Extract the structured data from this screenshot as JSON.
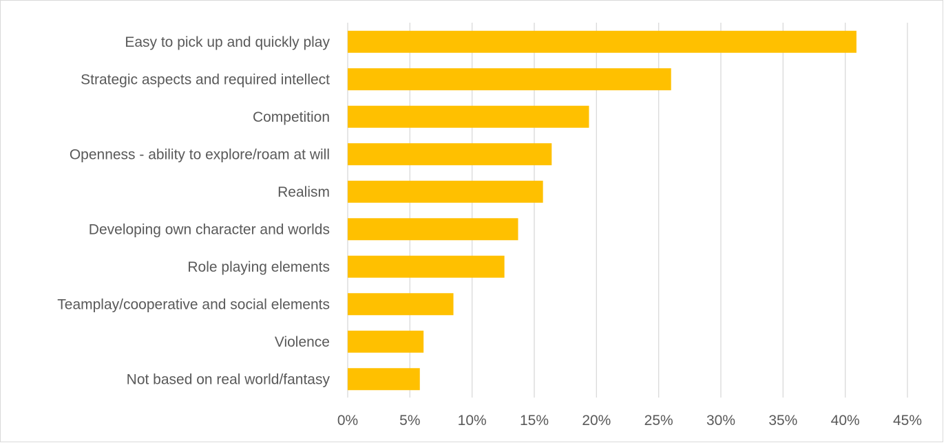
{
  "chart_data": {
    "type": "bar",
    "orientation": "horizontal",
    "categories": [
      "Easy to pick up and quickly play",
      "Strategic aspects and required intellect",
      "Competition",
      "Openness - ability to explore/roam at will",
      "Realism",
      "Developing own character and worlds",
      "Role playing elements",
      "Teamplay/cooperative and social elements",
      "Violence",
      "Not based on real world/fantasy"
    ],
    "values": [
      40.9,
      26.0,
      19.4,
      16.4,
      15.7,
      13.7,
      12.6,
      8.5,
      6.1,
      5.8
    ],
    "xlim": [
      0,
      45
    ],
    "xticks": [
      0,
      5,
      10,
      15,
      20,
      25,
      30,
      35,
      40,
      45
    ],
    "tick_format_suffix": "%",
    "grid": true,
    "bar_color": "#FFC000",
    "grid_color": "#d9d9d9",
    "text_color": "#595959"
  }
}
